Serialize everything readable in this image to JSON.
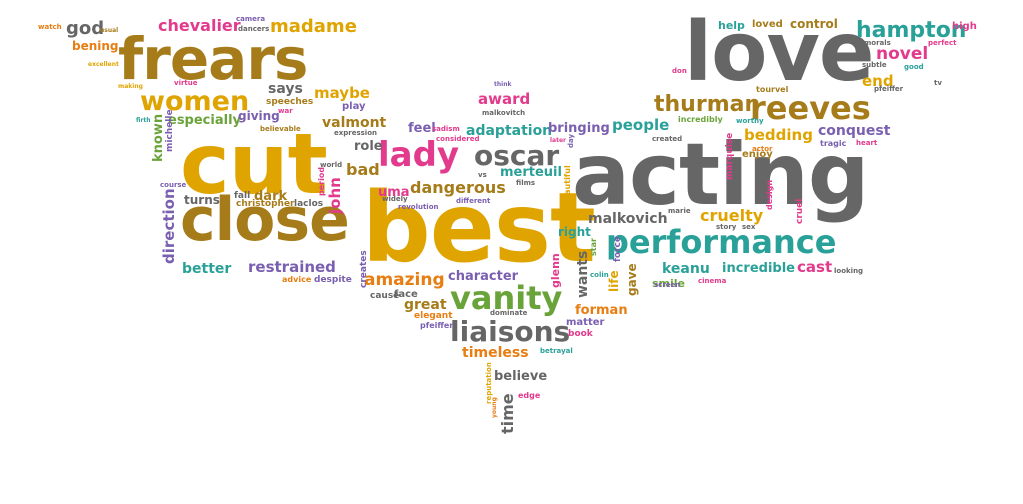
{
  "palette": {
    "gold": "#e0a400",
    "gray": "#666666",
    "brown": "#a67c1a",
    "green": "#6aa33a",
    "teal": "#2aa198",
    "pink": "#e23a8c",
    "purple": "#7a5fb0",
    "orange": "#e87d12"
  },
  "words": [
    {
      "text": "best",
      "color": "gold"
    },
    {
      "text": "acting",
      "color": "gray"
    },
    {
      "text": "cut",
      "color": "gold"
    },
    {
      "text": "love",
      "color": "gray"
    },
    {
      "text": "close",
      "color": "brown"
    },
    {
      "text": "frears",
      "color": "brown"
    },
    {
      "text": "performance",
      "color": "teal"
    },
    {
      "text": "vanity",
      "color": "green"
    },
    {
      "text": "reeves",
      "color": "brown"
    },
    {
      "text": "liaisons",
      "color": "gray"
    },
    {
      "text": "oscar",
      "color": "gray"
    },
    {
      "text": "lady",
      "color": "pink"
    },
    {
      "text": "women",
      "color": "gold"
    },
    {
      "text": "thurman",
      "color": "brown"
    },
    {
      "text": "hampton",
      "color": "teal"
    },
    {
      "text": "novel",
      "color": "pink"
    },
    {
      "text": "madame",
      "color": "gold"
    },
    {
      "text": "chevalier",
      "color": "pink"
    },
    {
      "text": "god",
      "color": "gray"
    },
    {
      "text": "bening",
      "color": "orange"
    },
    {
      "text": "maybe",
      "color": "gold"
    },
    {
      "text": "says",
      "color": "gray"
    },
    {
      "text": "especially",
      "color": "green"
    },
    {
      "text": "giving",
      "color": "purple"
    },
    {
      "text": "valmont",
      "color": "brown"
    },
    {
      "text": "award",
      "color": "pink"
    },
    {
      "text": "adaptation",
      "color": "teal"
    },
    {
      "text": "bringing",
      "color": "purple"
    },
    {
      "text": "people",
      "color": "teal"
    },
    {
      "text": "bedding",
      "color": "gold"
    },
    {
      "text": "conquest",
      "color": "purple"
    },
    {
      "text": "end",
      "color": "gold"
    },
    {
      "text": "feel",
      "color": "purple"
    },
    {
      "text": "role",
      "color": "gray"
    },
    {
      "text": "bad",
      "color": "brown"
    },
    {
      "text": "uma",
      "color": "pink"
    },
    {
      "text": "dangerous",
      "color": "brown"
    },
    {
      "text": "merteuil",
      "color": "teal"
    },
    {
      "text": "malkovich",
      "color": "gray"
    },
    {
      "text": "cruelty",
      "color": "gold"
    },
    {
      "text": "keanu",
      "color": "teal"
    },
    {
      "text": "incredible",
      "color": "teal"
    },
    {
      "text": "cast",
      "color": "pink"
    },
    {
      "text": "amazing",
      "color": "orange"
    },
    {
      "text": "character",
      "color": "purple"
    },
    {
      "text": "great",
      "color": "brown"
    },
    {
      "text": "timeless",
      "color": "orange"
    },
    {
      "text": "believe",
      "color": "gray"
    },
    {
      "text": "time",
      "color": "gray"
    },
    {
      "text": "dark",
      "color": "brown"
    },
    {
      "text": "turns",
      "color": "gray"
    },
    {
      "text": "better",
      "color": "teal"
    },
    {
      "text": "restrained",
      "color": "purple"
    },
    {
      "text": "direction",
      "color": "purple"
    },
    {
      "text": "known",
      "color": "green"
    },
    {
      "text": "john",
      "color": "pink"
    },
    {
      "text": "wants",
      "color": "gray"
    },
    {
      "text": "right",
      "color": "teal"
    },
    {
      "text": "glenn",
      "color": "pink"
    },
    {
      "text": "gave",
      "color": "brown"
    },
    {
      "text": "life",
      "color": "gold"
    },
    {
      "text": "smile",
      "color": "green"
    },
    {
      "text": "forman",
      "color": "orange"
    },
    {
      "text": "help",
      "color": "teal"
    },
    {
      "text": "loved",
      "color": "brown"
    },
    {
      "text": "control",
      "color": "brown"
    },
    {
      "text": "high",
      "color": "pink"
    },
    {
      "text": "face",
      "color": "gray"
    },
    {
      "text": "cause",
      "color": "gray"
    },
    {
      "text": "elegant",
      "color": "orange"
    },
    {
      "text": "matter",
      "color": "purple"
    },
    {
      "text": "book",
      "color": "pink"
    },
    {
      "text": "enjoy",
      "color": "brown"
    },
    {
      "text": "christopher",
      "color": "brown"
    },
    {
      "text": "laclos",
      "color": "gray"
    },
    {
      "text": "fall",
      "color": "gray"
    },
    {
      "text": "camera",
      "color": "purple"
    },
    {
      "text": "dancers",
      "color": "gray"
    },
    {
      "text": "watch",
      "color": "orange"
    },
    {
      "text": "usual",
      "color": "brown"
    },
    {
      "text": "excellent",
      "color": "gold"
    },
    {
      "text": "making",
      "color": "gold"
    },
    {
      "text": "virtue",
      "color": "pink"
    },
    {
      "text": "speeches",
      "color": "brown"
    },
    {
      "text": "play",
      "color": "purple"
    },
    {
      "text": "war",
      "color": "pink"
    },
    {
      "text": "firth",
      "color": "teal"
    },
    {
      "text": "michelle",
      "color": "purple"
    },
    {
      "text": "expression",
      "color": "gray"
    },
    {
      "text": "sadism",
      "color": "pink"
    },
    {
      "text": "considered",
      "color": "pink"
    },
    {
      "text": "malkovitch",
      "color": "gray"
    },
    {
      "text": "think",
      "color": "purple"
    },
    {
      "text": "later",
      "color": "pink"
    },
    {
      "text": "day",
      "color": "purple"
    },
    {
      "text": "marquise",
      "color": "pink"
    },
    {
      "text": "created",
      "color": "gray"
    },
    {
      "text": "worthy",
      "color": "teal"
    },
    {
      "text": "tourvel",
      "color": "brown"
    },
    {
      "text": "don",
      "color": "pink"
    },
    {
      "text": "incredibly",
      "color": "green"
    },
    {
      "text": "morals",
      "color": "gray"
    },
    {
      "text": "subtle",
      "color": "gray"
    },
    {
      "text": "perfect",
      "color": "pink"
    },
    {
      "text": "good",
      "color": "teal"
    },
    {
      "text": "tv",
      "color": "gray"
    },
    {
      "text": "pfeiffer",
      "color": "gray"
    },
    {
      "text": "actor",
      "color": "orange"
    },
    {
      "text": "tragic",
      "color": "purple"
    },
    {
      "text": "heart",
      "color": "pink"
    },
    {
      "text": "design",
      "color": "pink"
    },
    {
      "text": "cruel",
      "color": "pink"
    },
    {
      "text": "marie",
      "color": "gray"
    },
    {
      "text": "story",
      "color": "gray"
    },
    {
      "text": "sex",
      "color": "gray"
    },
    {
      "text": "looking",
      "color": "gray"
    },
    {
      "text": "cinema",
      "color": "pink"
    },
    {
      "text": "screen",
      "color": "purple"
    },
    {
      "text": "colin",
      "color": "teal"
    },
    {
      "text": "star",
      "color": "green"
    },
    {
      "text": "force",
      "color": "purple"
    },
    {
      "text": "films",
      "color": "gray"
    },
    {
      "text": "beautiful",
      "color": "gold"
    },
    {
      "text": "different",
      "color": "purple"
    },
    {
      "text": "vs",
      "color": "gray"
    },
    {
      "text": "widely",
      "color": "gray"
    },
    {
      "text": "revolution",
      "color": "purple"
    },
    {
      "text": "world",
      "color": "gray"
    },
    {
      "text": "period",
      "color": "pink"
    },
    {
      "text": "believable",
      "color": "brown"
    },
    {
      "text": "course",
      "color": "purple"
    },
    {
      "text": "advice",
      "color": "orange"
    },
    {
      "text": "despite",
      "color": "purple"
    },
    {
      "text": "creates",
      "color": "purple"
    },
    {
      "text": "pfeiffer",
      "color": "purple"
    },
    {
      "text": "dominate",
      "color": "gray"
    },
    {
      "text": "betrayal",
      "color": "teal"
    },
    {
      "text": "reputation",
      "color": "gold"
    },
    {
      "text": "young",
      "color": "orange"
    },
    {
      "text": "edge",
      "color": "pink"
    }
  ]
}
